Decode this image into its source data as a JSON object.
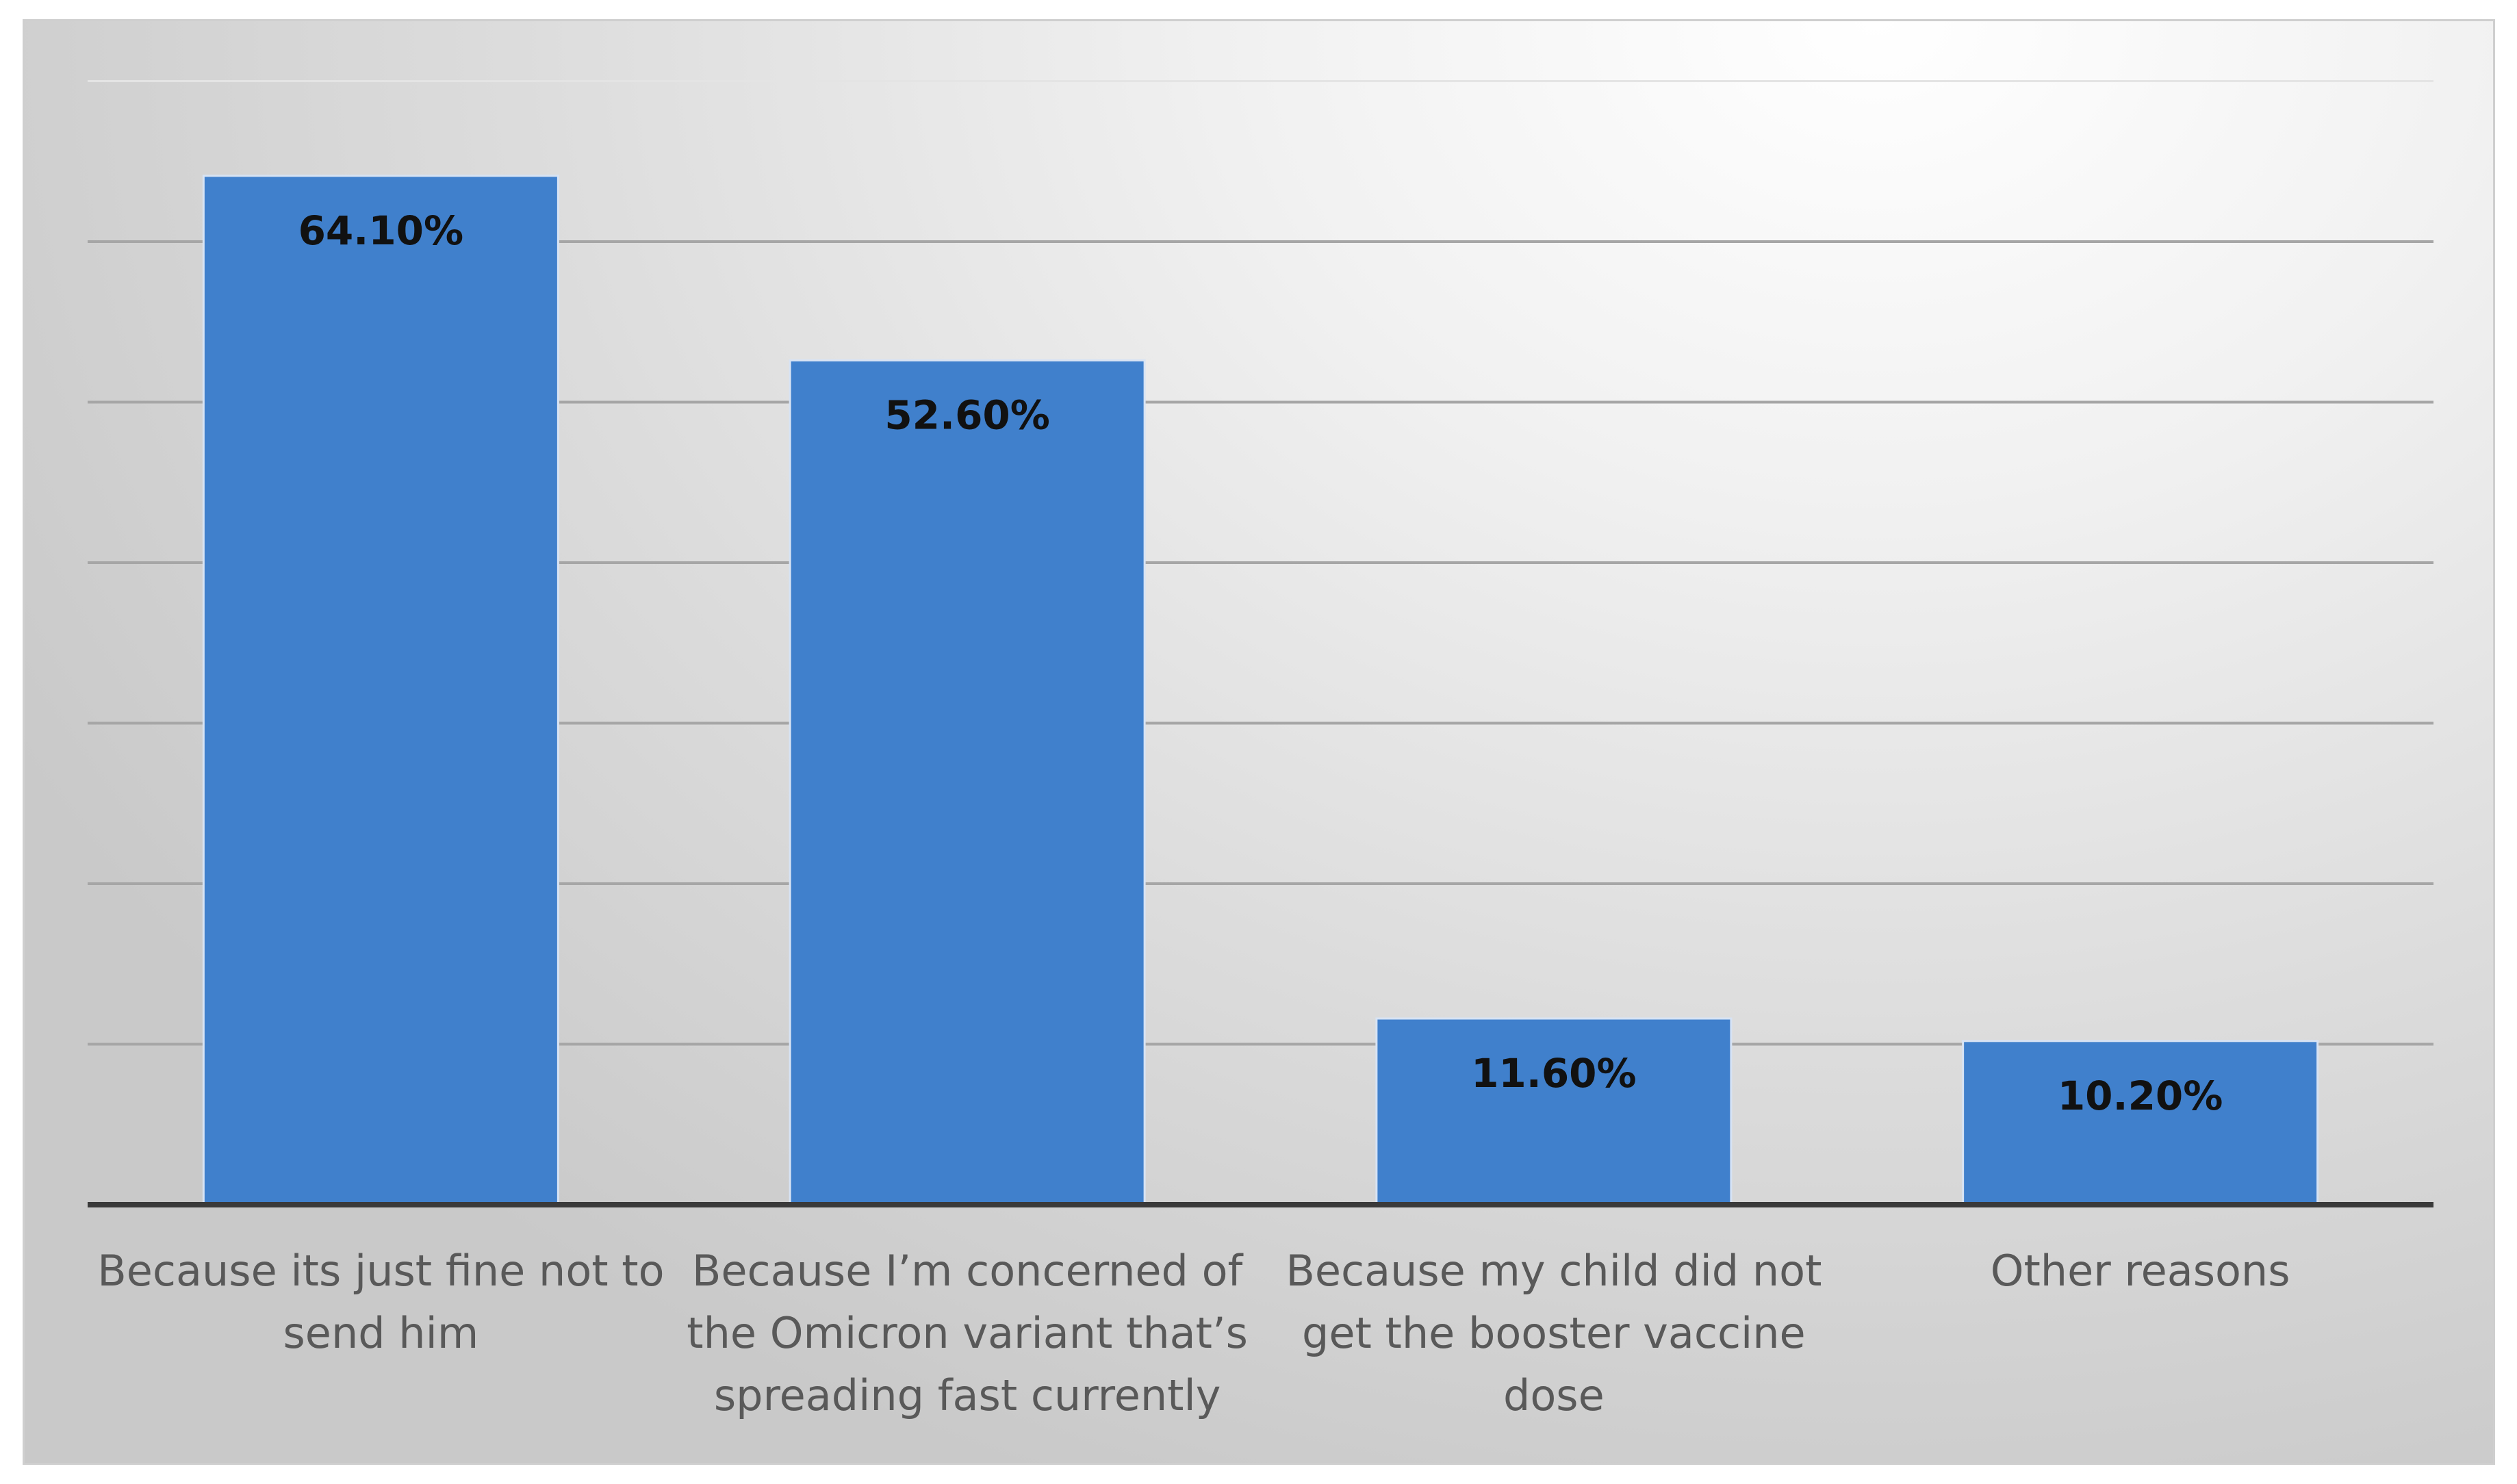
{
  "chart_data": {
    "type": "bar",
    "categories": [
      [
        "Because its just fine not to",
        "send him"
      ],
      [
        "Because I’m concerned of",
        "the Omicron variant that’s",
        "spreading fast currently"
      ],
      [
        "Because my child did not",
        "get the booster vaccine",
        "dose"
      ],
      [
        "Other reasons"
      ]
    ],
    "values": [
      64.1,
      52.6,
      11.6,
      10.2
    ],
    "value_labels": [
      "64.10%",
      "52.60%",
      "11.60%",
      "10.20%"
    ],
    "title": "",
    "xlabel": "",
    "ylabel": "",
    "ylim": [
      0,
      70
    ],
    "ytick_step": 10,
    "grid": true,
    "legend": "none",
    "bar_color": "#4080cc"
  }
}
